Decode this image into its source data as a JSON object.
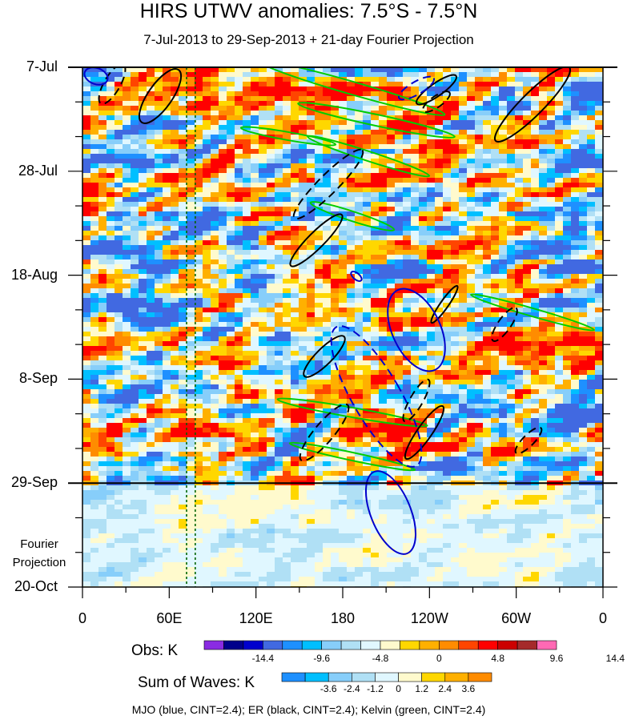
{
  "chart_data": {
    "type": "heatmap",
    "title": "HIRS UTWV anomalies: 7.5°S - 7.5°N",
    "subtitle": "7-Jul-2013 to 29-Sep-2013 + 21-day Fourier Projection",
    "y_tick_labels": [
      "7-Jul",
      "28-Jul",
      "18-Aug",
      "8-Sep",
      "29-Sep",
      "20-Oct"
    ],
    "x_tick_labels": [
      "0",
      "60E",
      "120E",
      "180",
      "120W",
      "60W",
      "0"
    ],
    "x_range_deg_east": [
      0,
      360
    ],
    "y_range": [
      "7-Jul-2013",
      "20-Oct-2013"
    ],
    "projection_start": "29-Sep-2013",
    "fourier_note": [
      "Fourier",
      "Projection"
    ],
    "colorbar_obs": {
      "title": "Obs: K",
      "tick_labels": [
        "-14.4",
        "-9.6",
        "-4.8",
        "0",
        "4.8",
        "9.6",
        "14.4"
      ],
      "colors": [
        "#8a2be2",
        "#00008b",
        "#0000cd",
        "#4169e1",
        "#1e90ff",
        "#00bfff",
        "#87cefa",
        "#b0e0f5",
        "#e0f7ff",
        "#fffacd",
        "#ffd700",
        "#ffb000",
        "#ff8c00",
        "#ff4500",
        "#ff0000",
        "#cc0000",
        "#a52a2a",
        "#ff69b4"
      ]
    },
    "colorbar_waves": {
      "title": "Sum of Waves: K",
      "tick_labels": [
        "-3.6",
        "-2.4",
        "-1.2",
        "0",
        "1.2",
        "2.4",
        "3.6"
      ],
      "colors": [
        "#1e90ff",
        "#00bfff",
        "#87cefa",
        "#b0e0f5",
        "#e0f7ff",
        "#fffacd",
        "#ffd700",
        "#ffb000",
        "#ff8c00"
      ]
    },
    "overlays": {
      "mjo": {
        "color": "#0000cc",
        "cint": 2.4
      },
      "er": {
        "color": "#000000",
        "cint": 2.4
      },
      "kelvin": {
        "color": "#00cc00",
        "cint": 2.4
      }
    },
    "reference_lines_lon_deg_east": [
      72,
      78
    ],
    "footer": "MJO (blue, CINT=2.4); ER (black, CINT=2.4); Kelvin (green, CINT=2.4)"
  }
}
